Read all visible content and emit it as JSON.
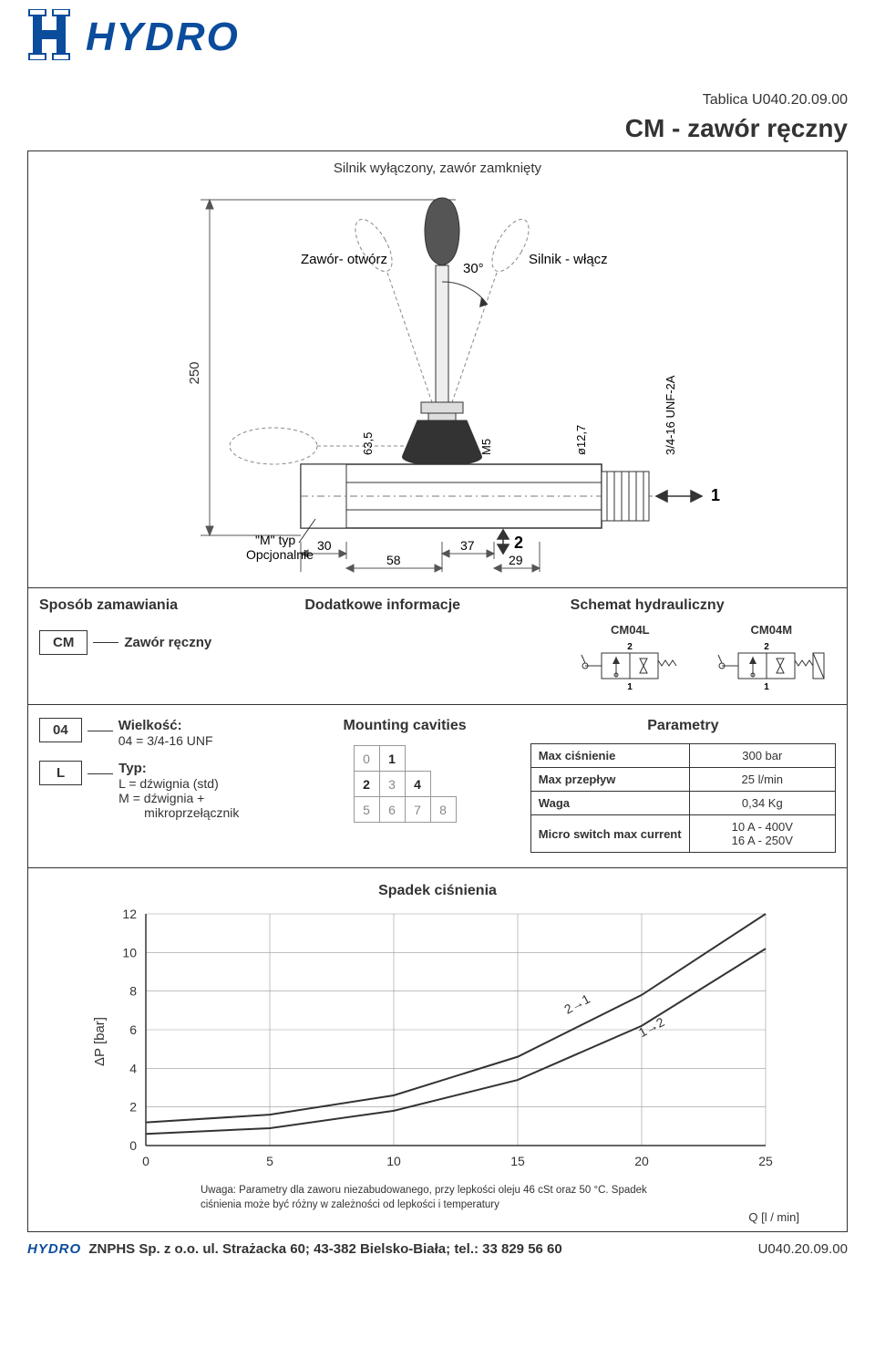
{
  "brand": {
    "name": "HYDRO",
    "color": "#0b4c9c"
  },
  "tablica": "Tablica U040.20.09.00",
  "title": "CM - zawór ręczny",
  "figure": {
    "caption": "Silnik wyłączony, zawór zamknięty",
    "label_open": "Zawór- otwórz",
    "label_close": "Silnik - włącz",
    "angle": "30°",
    "dim_height": "250",
    "dim_63_5": "63,5",
    "dim_M5": "M5",
    "dim_d127": "ø12,7",
    "dim_thread": "3/4-16 UNF-2A",
    "dim_30": "30",
    "dim_37": "37",
    "dim_58": "58",
    "dim_29": "29",
    "port1": "1",
    "port2": "2",
    "m_typ": "\"M\" typ",
    "m_opt": "Opcjonalnie"
  },
  "ordering": {
    "heading": "Sposób zamawiania",
    "code": "CM",
    "label": "Zawór ręczny"
  },
  "info": {
    "heading": "Dodatkowe informacje"
  },
  "schematic": {
    "heading": "Schemat hydrauliczny",
    "left_code": "CM04L",
    "right_code": "CM04M"
  },
  "size": {
    "code": "04",
    "title": "Wielkość:",
    "desc": "04 = 3/4-16 UNF"
  },
  "type": {
    "code": "L",
    "title": "Typ:",
    "l1": "L = dźwignia (std)",
    "l2": "M = dźwignia +",
    "l3": "mikroprzełącznik"
  },
  "cavities": {
    "title": "Mounting cavities",
    "cells": [
      [
        "0",
        "1",
        "",
        ""
      ],
      [
        "2",
        "3",
        "4",
        ""
      ],
      [
        "5",
        "6",
        "7",
        "8"
      ]
    ],
    "active": [
      "1",
      "2",
      "4"
    ]
  },
  "params": {
    "title": "Parametry",
    "rows": [
      {
        "k": "Max ciśnienie",
        "v": "300 bar"
      },
      {
        "k": "Max przepływ",
        "v": "25 l/min"
      },
      {
        "k": "Waga",
        "v": "0,34 Kg"
      },
      {
        "k": "Micro switch max current",
        "v": "10 A - 400V\n16 A - 250V"
      }
    ]
  },
  "chart": {
    "title": "Spadek ciśnienia",
    "ylabel": "ΔP [bar]",
    "xlabel": "Q [l / min]",
    "x_ticks": [
      0,
      5,
      10,
      15,
      20,
      25
    ],
    "y_ticks": [
      0,
      2,
      4,
      6,
      8,
      10,
      12
    ],
    "xlim": [
      0,
      25
    ],
    "ylim": [
      0,
      12
    ],
    "curves": {
      "c1": {
        "label": "2→1",
        "pts": [
          [
            0,
            1.2
          ],
          [
            5,
            1.6
          ],
          [
            10,
            2.6
          ],
          [
            15,
            4.6
          ],
          [
            20,
            7.8
          ],
          [
            25,
            12
          ]
        ]
      },
      "c2": {
        "label": "1→2",
        "pts": [
          [
            0,
            0.6
          ],
          [
            5,
            0.9
          ],
          [
            10,
            1.8
          ],
          [
            15,
            3.4
          ],
          [
            20,
            6.2
          ],
          [
            25,
            10.2
          ]
        ]
      }
    },
    "line_color": "#333",
    "grid_color": "#999",
    "note": "Uwaga: Parametry dla zaworu niezabudowanego, przy lepkości oleju 46 cSt oraz 50 °C. Spadek ciśnienia może być różny w zależności od lepkości i temperatury"
  },
  "footer": {
    "text": "ZNPHS Sp. z o.o.  ul. Strażacka 60; 43-382 Bielsko-Biała; tel.: 33 829 56 60",
    "code": "U040.20.09.00"
  }
}
